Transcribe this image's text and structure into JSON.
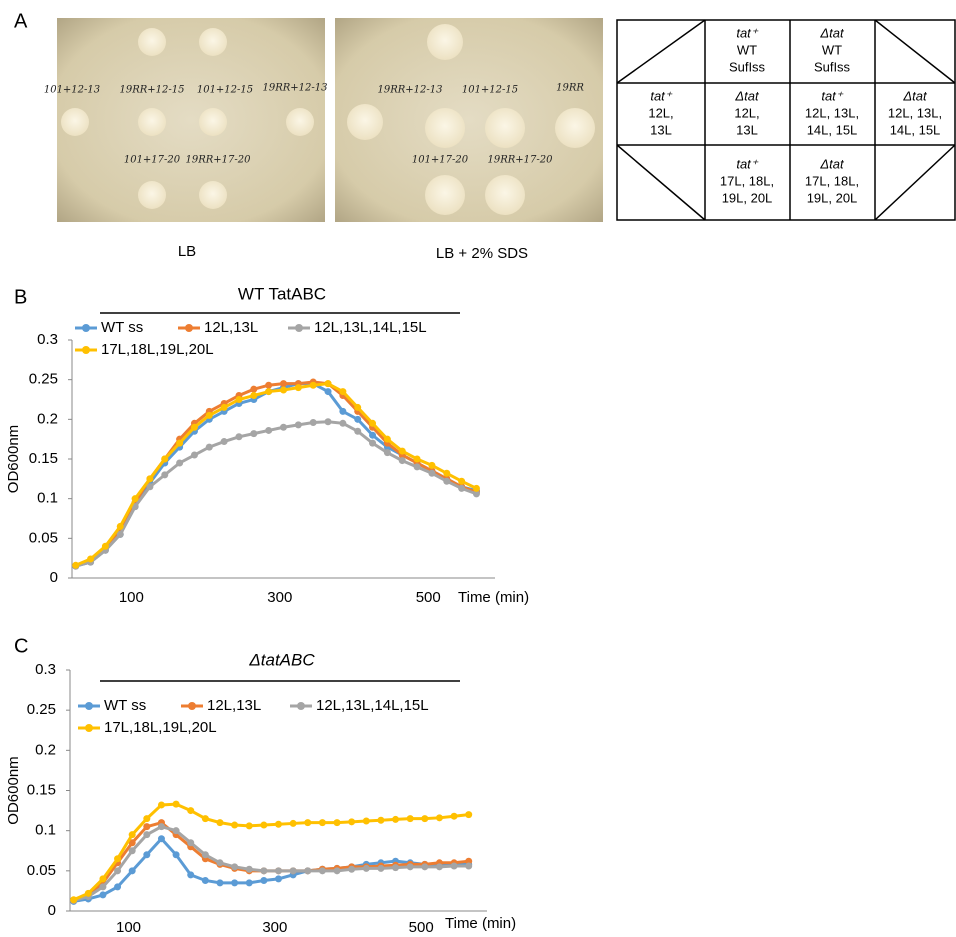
{
  "panels": {
    "a": "A",
    "b": "B",
    "c": "C"
  },
  "plates": [
    {
      "caption": "LB",
      "labels": [
        "101+12-13",
        "19RR+12-15",
        "101+12-15",
        "19RR+12-13",
        "101+17-20",
        "19RR+17-20"
      ]
    },
    {
      "caption": "LB + 2% SDS",
      "labels": [
        "19RR+12-13",
        "101+12-15",
        "19RR",
        "101+17-20",
        "19RR+17-20"
      ]
    }
  ],
  "table": {
    "rows": [
      [
        [],
        [
          "tat⁺",
          "WT",
          "SufIss"
        ],
        [
          "Δtat",
          "WT",
          "SufIss"
        ],
        []
      ],
      [
        [
          "tat⁺",
          "12L,",
          "13L"
        ],
        [
          "Δtat",
          "12L,",
          "13L"
        ],
        [
          "tat⁺",
          "12L, 13L,",
          "14L, 15L"
        ],
        [
          "Δtat",
          "12L, 13L,",
          "14L, 15L"
        ]
      ],
      [
        [],
        [
          "tat⁺",
          "17L, 18L,",
          "19L, 20L"
        ],
        [
          "Δtat",
          "17L, 18L,",
          "19L, 20L"
        ],
        []
      ]
    ]
  },
  "chart_data": [
    {
      "type": "line",
      "title": "WT TatABC",
      "x_label": "Time (min)",
      "y_label": "OD600nm",
      "x": [
        25,
        45,
        65,
        85,
        105,
        125,
        145,
        165,
        185,
        205,
        225,
        245,
        265,
        285,
        305,
        325,
        345,
        365,
        385,
        405,
        425,
        445,
        465,
        485,
        505,
        525,
        545,
        565
      ],
      "xlim": [
        20,
        590
      ],
      "xticks": [
        100,
        300,
        500
      ],
      "ylim": [
        0,
        0.3
      ],
      "yticks": [
        0,
        0.05,
        0.1,
        0.15,
        0.2,
        0.25,
        0.3
      ],
      "series": [
        {
          "name": "WT ss",
          "color": "#5b9bd5",
          "values": [
            0.015,
            0.02,
            0.035,
            0.055,
            0.09,
            0.12,
            0.145,
            0.165,
            0.185,
            0.2,
            0.21,
            0.22,
            0.225,
            0.235,
            0.24,
            0.245,
            0.245,
            0.235,
            0.21,
            0.2,
            0.18,
            0.165,
            0.155,
            0.145,
            0.135,
            0.125,
            0.115,
            0.11
          ]
        },
        {
          "name": "12L,13L",
          "color": "#ed7d31",
          "values": [
            0.015,
            0.022,
            0.038,
            0.06,
            0.095,
            0.125,
            0.15,
            0.175,
            0.195,
            0.21,
            0.22,
            0.23,
            0.238,
            0.243,
            0.245,
            0.245,
            0.247,
            0.245,
            0.23,
            0.21,
            0.19,
            0.17,
            0.155,
            0.145,
            0.135,
            0.125,
            0.115,
            0.108
          ]
        },
        {
          "name": "12L,13L,14L,15L",
          "color": "#a5a5a5",
          "values": [
            0.015,
            0.02,
            0.035,
            0.055,
            0.09,
            0.115,
            0.13,
            0.145,
            0.155,
            0.165,
            0.172,
            0.178,
            0.182,
            0.186,
            0.19,
            0.193,
            0.196,
            0.197,
            0.195,
            0.185,
            0.17,
            0.158,
            0.148,
            0.14,
            0.132,
            0.122,
            0.113,
            0.106
          ]
        },
        {
          "name": "17L,18L,19L,20L",
          "color": "#ffc000",
          "values": [
            0.016,
            0.024,
            0.04,
            0.065,
            0.1,
            0.125,
            0.15,
            0.17,
            0.19,
            0.205,
            0.215,
            0.225,
            0.23,
            0.235,
            0.237,
            0.24,
            0.243,
            0.245,
            0.235,
            0.215,
            0.195,
            0.175,
            0.16,
            0.15,
            0.142,
            0.132,
            0.122,
            0.113
          ]
        }
      ]
    },
    {
      "type": "line",
      "title": "ΔtatABC",
      "x_label": "Time (min)",
      "y_label": "OD600nm",
      "x": [
        25,
        45,
        65,
        85,
        105,
        125,
        145,
        165,
        185,
        205,
        225,
        245,
        265,
        285,
        305,
        325,
        345,
        365,
        385,
        405,
        425,
        445,
        465,
        485,
        505,
        525,
        545,
        565
      ],
      "xlim": [
        20,
        590
      ],
      "xticks": [
        100,
        300,
        500
      ],
      "ylim": [
        0,
        0.3
      ],
      "yticks": [
        0,
        0.05,
        0.1,
        0.15,
        0.2,
        0.25,
        0.3
      ],
      "series": [
        {
          "name": "WT ss",
          "color": "#5b9bd5",
          "values": [
            0.012,
            0.015,
            0.02,
            0.03,
            0.05,
            0.07,
            0.09,
            0.07,
            0.045,
            0.038,
            0.035,
            0.035,
            0.035,
            0.038,
            0.04,
            0.045,
            0.05,
            0.052,
            0.053,
            0.055,
            0.058,
            0.06,
            0.062,
            0.06,
            0.058,
            0.057,
            0.058,
            0.058
          ]
        },
        {
          "name": "12L,13L",
          "color": "#ed7d31",
          "values": [
            0.013,
            0.02,
            0.035,
            0.06,
            0.085,
            0.105,
            0.11,
            0.095,
            0.08,
            0.065,
            0.058,
            0.053,
            0.05,
            0.05,
            0.05,
            0.05,
            0.05,
            0.052,
            0.053,
            0.055,
            0.055,
            0.056,
            0.057,
            0.058,
            0.058,
            0.06,
            0.06,
            0.062
          ]
        },
        {
          "name": "12L,13L,14L,15L",
          "color": "#a5a5a5",
          "values": [
            0.013,
            0.018,
            0.03,
            0.05,
            0.075,
            0.095,
            0.105,
            0.1,
            0.085,
            0.07,
            0.06,
            0.055,
            0.052,
            0.05,
            0.05,
            0.05,
            0.05,
            0.05,
            0.05,
            0.052,
            0.053,
            0.053,
            0.054,
            0.055,
            0.055,
            0.055,
            0.056,
            0.056
          ]
        },
        {
          "name": "17L,18L,19L,20L",
          "color": "#ffc000",
          "values": [
            0.014,
            0.022,
            0.04,
            0.065,
            0.095,
            0.115,
            0.132,
            0.133,
            0.125,
            0.115,
            0.11,
            0.107,
            0.106,
            0.107,
            0.108,
            0.109,
            0.11,
            0.11,
            0.11,
            0.111,
            0.112,
            0.113,
            0.114,
            0.115,
            0.115,
            0.116,
            0.118,
            0.12
          ]
        }
      ]
    }
  ]
}
